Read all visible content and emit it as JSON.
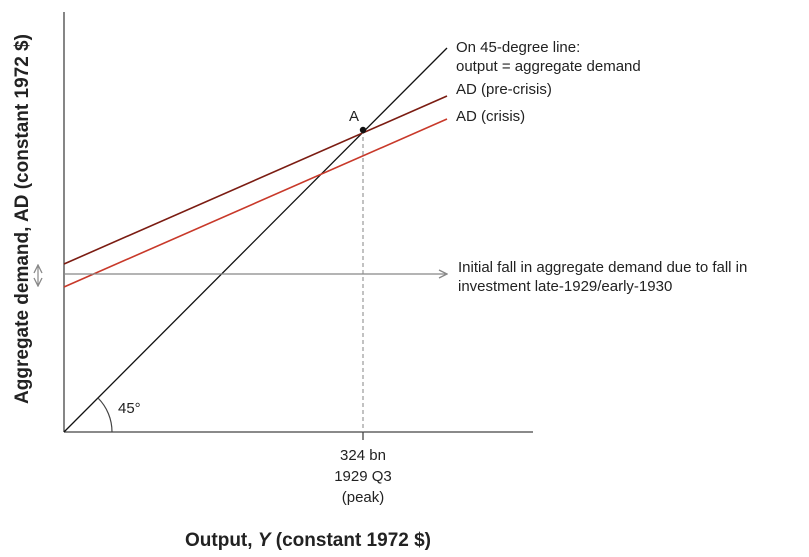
{
  "diagram": {
    "lines": {
      "line_45": [
        "On 45-degree line:",
        "output = aggregate demand"
      ],
      "ad_pre_crisis": "AD (pre-crisis)",
      "ad_crisis": "AD (crisis)"
    },
    "point_label": "A",
    "angle_label": "45°",
    "arrow_label": [
      "Initial fall in aggregate demand due to fall in",
      "investment late-1929/early-1930"
    ],
    "x_marker": [
      "324 bn",
      "1929 Q3",
      "(peak)"
    ],
    "x_axis_label": [
      "Output, ",
      "Y",
      " (constant 1972 $)"
    ],
    "y_axis_label": "Aggregate demand, AD (constant 1972 $)"
  }
}
